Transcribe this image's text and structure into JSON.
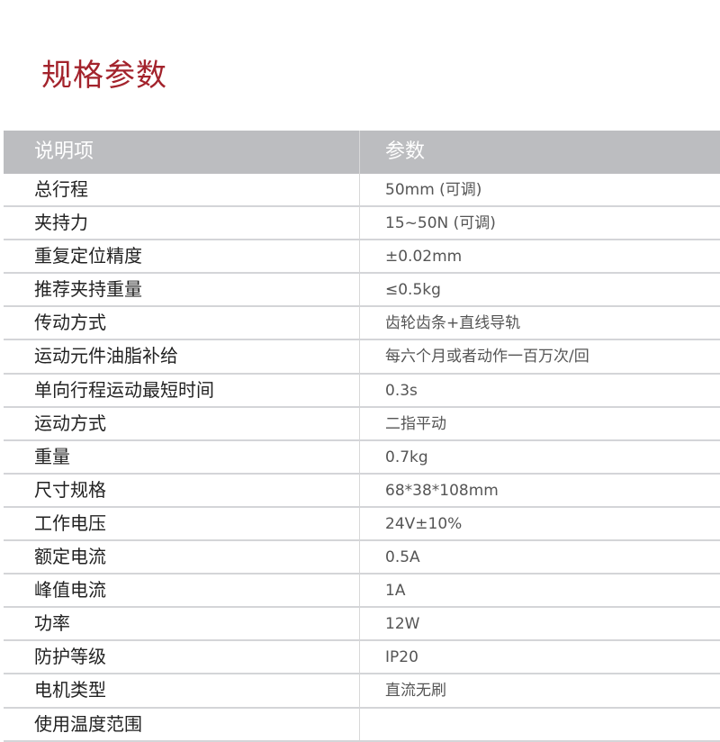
{
  "title": "规格参数",
  "table": {
    "headers": [
      "说明项",
      "参数"
    ],
    "rows": [
      [
        "总行程",
        "50mm (可调)"
      ],
      [
        "夹持力",
        "15~50N (可调)"
      ],
      [
        "重复定位精度",
        "±0.02mm"
      ],
      [
        "推荐夹持重量",
        "≤0.5kg"
      ],
      [
        "传动方式",
        "齿轮齿条+直线导轨"
      ],
      [
        "运动元件油脂补给",
        "每六个月或者动作一百万次/回"
      ],
      [
        "单向行程运动最短时间",
        "0.3s"
      ],
      [
        "运动方式",
        "二指平动"
      ],
      [
        "重量",
        "0.7kg"
      ],
      [
        "尺寸规格",
        "68*38*108mm"
      ],
      [
        "工作电压",
        "24V±10%"
      ],
      [
        "额定电流",
        "0.5A"
      ],
      [
        "峰值电流",
        "1A"
      ],
      [
        "功率",
        "12W"
      ],
      [
        "防护等级",
        "IP20"
      ],
      [
        "电机类型",
        "直流无刷"
      ],
      [
        "使用温度范围",
        ""
      ]
    ]
  }
}
